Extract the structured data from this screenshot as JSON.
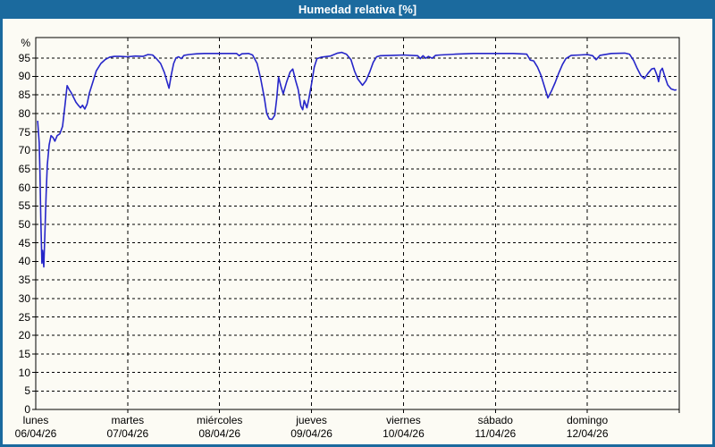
{
  "window": {
    "title": "Humedad relativa [%]",
    "title_bar_color": "#1b6a9e",
    "frame_color": "#1b6a9e",
    "background_color": "#fcfbf4"
  },
  "chart_data": {
    "type": "line",
    "title": "Humedad relativa [%]",
    "ylabel": "%",
    "ylim": [
      0,
      100.5
    ],
    "y_ticks": [
      0,
      5,
      10,
      15,
      20,
      25,
      30,
      35,
      40,
      45,
      50,
      55,
      60,
      65,
      70,
      75,
      80,
      85,
      90,
      95
    ],
    "grid": "dashed",
    "grid_color": "#000000",
    "axis_color": "#000000",
    "x_axis": {
      "unit": "hours_from_monday_00h",
      "range_hours": [
        0,
        168
      ],
      "day_boundaries_hours": [
        24,
        48,
        72,
        96,
        120,
        144
      ],
      "days": [
        {
          "name": "lunes",
          "date": "06/04/26"
        },
        {
          "name": "martes",
          "date": "07/04/26"
        },
        {
          "name": "miércoles",
          "date": "08/04/26"
        },
        {
          "name": "jueves",
          "date": "09/04/26"
        },
        {
          "name": "viernes",
          "date": "10/04/26"
        },
        {
          "name": "sábado",
          "date": "11/04/26"
        },
        {
          "name": "domingo",
          "date": "12/04/26"
        }
      ]
    },
    "series": [
      {
        "name": "Humedad relativa [%]",
        "color": "#2626c9",
        "points": [
          [
            0.5,
            78
          ],
          [
            0.7,
            75
          ],
          [
            0.9,
            72
          ],
          [
            1.1,
            64
          ],
          [
            1.3,
            52
          ],
          [
            1.6,
            39.5
          ],
          [
            1.8,
            43
          ],
          [
            2.1,
            38.5
          ],
          [
            2.4,
            48
          ],
          [
            2.7,
            58
          ],
          [
            3.0,
            66
          ],
          [
            3.5,
            71.5
          ],
          [
            4.0,
            74
          ],
          [
            4.5,
            73.5
          ],
          [
            5.0,
            72.5
          ],
          [
            5.6,
            74
          ],
          [
            6.3,
            74.5
          ],
          [
            7.0,
            76.5
          ],
          [
            7.6,
            82
          ],
          [
            8.2,
            87.5
          ],
          [
            8.7,
            86.5
          ],
          [
            9.3,
            85.5
          ],
          [
            10.5,
            83
          ],
          [
            11.1,
            82.2
          ],
          [
            11.7,
            81.5
          ],
          [
            12.2,
            82.2
          ],
          [
            12.8,
            81.2
          ],
          [
            13.4,
            82.5
          ],
          [
            14.0,
            85.5
          ],
          [
            14.9,
            88.5
          ],
          [
            15.8,
            91.5
          ],
          [
            17.0,
            93.5
          ],
          [
            18.2,
            94.6
          ],
          [
            19.3,
            95.2
          ],
          [
            20.5,
            95.4
          ],
          [
            22.0,
            95.4
          ],
          [
            24.0,
            95.3
          ],
          [
            26.0,
            95.5
          ],
          [
            28.0,
            95.4
          ],
          [
            29.3,
            95.9
          ],
          [
            30.5,
            95.8
          ],
          [
            31.5,
            94.8
          ],
          [
            32.6,
            93.5
          ],
          [
            33.6,
            91.0
          ],
          [
            34.3,
            88.5
          ],
          [
            34.8,
            86.8
          ],
          [
            35.4,
            90.5
          ],
          [
            36.0,
            93.5
          ],
          [
            36.6,
            95.0
          ],
          [
            37.3,
            95.3
          ],
          [
            38.0,
            94.8
          ],
          [
            38.7,
            95.7
          ],
          [
            40.0,
            95.9
          ],
          [
            42.0,
            96.1
          ],
          [
            44.0,
            96.2
          ],
          [
            48.0,
            96.2
          ],
          [
            52.4,
            96.2
          ],
          [
            53.1,
            95.6
          ],
          [
            53.8,
            96.1
          ],
          [
            55.5,
            96.2
          ],
          [
            56.6,
            95.8
          ],
          [
            57.8,
            93.5
          ],
          [
            58.7,
            89.5
          ],
          [
            59.7,
            84.0
          ],
          [
            60.3,
            80.0
          ],
          [
            61.0,
            78.5
          ],
          [
            61.7,
            78.4
          ],
          [
            62.4,
            79.5
          ],
          [
            62.9,
            84.0
          ],
          [
            63.4,
            89.8
          ],
          [
            64.1,
            87.0
          ],
          [
            64.6,
            85.3
          ],
          [
            65.5,
            88.5
          ],
          [
            66.4,
            91.2
          ],
          [
            67.1,
            92.0
          ],
          [
            67.8,
            89.0
          ],
          [
            68.5,
            86.5
          ],
          [
            69.2,
            82.0
          ],
          [
            69.7,
            81.0
          ],
          [
            70.1,
            83.5
          ],
          [
            70.8,
            81.5
          ],
          [
            71.3,
            84.0
          ],
          [
            72.0,
            88.0
          ],
          [
            72.7,
            92.5
          ],
          [
            73.4,
            94.8
          ],
          [
            74.6,
            95.2
          ],
          [
            76.9,
            95.5
          ],
          [
            78.8,
            96.3
          ],
          [
            79.9,
            96.5
          ],
          [
            81.1,
            96.0
          ],
          [
            82.3,
            94.5
          ],
          [
            83.2,
            91.5
          ],
          [
            84.1,
            89.3
          ],
          [
            85.3,
            87.6
          ],
          [
            86.2,
            88.8
          ],
          [
            87.2,
            91.2
          ],
          [
            88.1,
            93.8
          ],
          [
            89.0,
            95.3
          ],
          [
            90.0,
            95.6
          ],
          [
            93.2,
            95.7
          ],
          [
            96.0,
            95.8
          ],
          [
            99.7,
            95.6
          ],
          [
            100.4,
            94.8
          ],
          [
            101.1,
            95.6
          ],
          [
            101.8,
            94.9
          ],
          [
            102.5,
            95.4
          ],
          [
            103.5,
            94.9
          ],
          [
            104.4,
            95.7
          ],
          [
            105.6,
            95.8
          ],
          [
            109.5,
            96.0
          ],
          [
            114.2,
            96.2
          ],
          [
            120.0,
            96.2
          ],
          [
            124.7,
            96.2
          ],
          [
            128.2,
            96.0
          ],
          [
            129.1,
            94.4
          ],
          [
            130.0,
            94.2
          ],
          [
            131.0,
            92.5
          ],
          [
            131.9,
            90.3
          ],
          [
            132.8,
            87.3
          ],
          [
            133.7,
            84.2
          ],
          [
            134.7,
            86.2
          ],
          [
            135.6,
            88.3
          ],
          [
            136.5,
            90.8
          ],
          [
            137.5,
            93.2
          ],
          [
            138.4,
            94.8
          ],
          [
            139.8,
            95.7
          ],
          [
            142.1,
            95.8
          ],
          [
            144.0,
            95.9
          ],
          [
            145.4,
            95.6
          ],
          [
            146.3,
            94.5
          ],
          [
            147.3,
            95.7
          ],
          [
            150.3,
            96.2
          ],
          [
            153.8,
            96.3
          ],
          [
            155.0,
            96.0
          ],
          [
            156.1,
            94.3
          ],
          [
            157.0,
            92.2
          ],
          [
            158.0,
            90.2
          ],
          [
            158.9,
            89.4
          ],
          [
            159.8,
            90.8
          ],
          [
            160.8,
            92.0
          ],
          [
            161.5,
            92.2
          ],
          [
            162.2,
            90.3
          ],
          [
            162.6,
            88.6
          ],
          [
            163.1,
            91.5
          ],
          [
            163.6,
            92.2
          ],
          [
            164.3,
            89.8
          ],
          [
            165.0,
            87.7
          ],
          [
            165.9,
            86.6
          ],
          [
            166.8,
            86.3
          ],
          [
            167.3,
            86.4
          ]
        ]
      }
    ]
  }
}
